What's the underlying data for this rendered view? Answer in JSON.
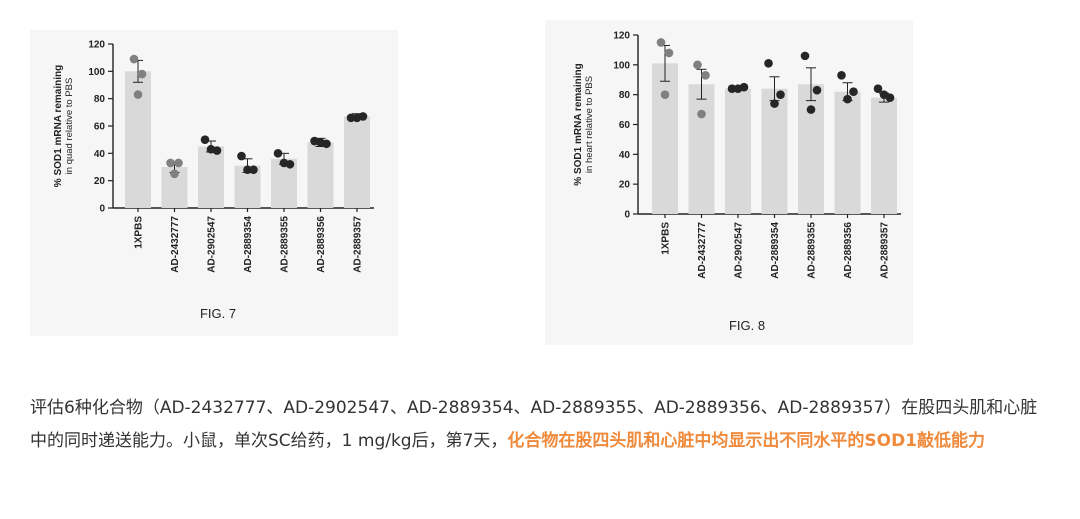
{
  "figures": [
    {
      "fig_label": "FIG. 7",
      "chart_data": {
        "type": "bar",
        "categories": [
          "1XPBS",
          "AD-2432777",
          "AD-2902547",
          "AD-2889354",
          "AD-2889355",
          "AD-2889356",
          "AD-2889357"
        ],
        "values": [
          100,
          30,
          45,
          31,
          36,
          48,
          67
        ],
        "errors": [
          8,
          4,
          4,
          5,
          4,
          3,
          2
        ],
        "points": [
          [
            109,
            98,
            83
          ],
          [
            33,
            33,
            25
          ],
          [
            50,
            42,
            43
          ],
          [
            38,
            28,
            28
          ],
          [
            40,
            32,
            33
          ],
          [
            49,
            47,
            48
          ],
          [
            66,
            67,
            66
          ]
        ],
        "ylabel": "% SOD1 mRNA remaining",
        "ylabel2": "in quad relative to PBS",
        "ylim": [
          0,
          120
        ],
        "yticks": [
          0,
          20,
          40,
          60,
          80,
          100,
          120
        ],
        "bar_color": "#d9d9d9",
        "point_colors": [
          "#808080",
          "#808080",
          "#262626",
          "#262626",
          "#262626",
          "#262626",
          "#262626"
        ]
      }
    },
    {
      "fig_label": "FIG. 8",
      "chart_data": {
        "type": "bar",
        "categories": [
          "1XPBS",
          "AD-2432777",
          "AD-2902547",
          "AD-2889354",
          "AD-2889355",
          "AD-2889356",
          "AD-2889357"
        ],
        "values": [
          101,
          87,
          84,
          84,
          87,
          82,
          78
        ],
        "errors": [
          12,
          10,
          1,
          8,
          11,
          6,
          3
        ],
        "points": [
          [
            115,
            108,
            80
          ],
          [
            100,
            93,
            67
          ],
          [
            84,
            85,
            84
          ],
          [
            101,
            80,
            74
          ],
          [
            106,
            83,
            70
          ],
          [
            93,
            82,
            77
          ],
          [
            84,
            78,
            80
          ]
        ],
        "ylabel": "% SOD1 mRNA remaining",
        "ylabel2": "in heart relative to PBS",
        "ylim": [
          0,
          120
        ],
        "yticks": [
          0,
          20,
          40,
          60,
          80,
          100,
          120
        ],
        "bar_color": "#d9d9d9",
        "point_colors": [
          "#808080",
          "#808080",
          "#262626",
          "#262626",
          "#262626",
          "#262626",
          "#262626"
        ]
      }
    }
  ],
  "caption": {
    "part1": "评估6种化合物（AD-2432777、AD-2902547、AD-2889354、AD-2889355、AD-2889356、AD-2889357）在股四头肌和心脏中的同时递送能力。小鼠，单次SC给药，1 mg/kg后，第7天，",
    "highlight": "化合物在股四头肌和心脏中均显示出不同水平的SOD1敲低能力"
  }
}
